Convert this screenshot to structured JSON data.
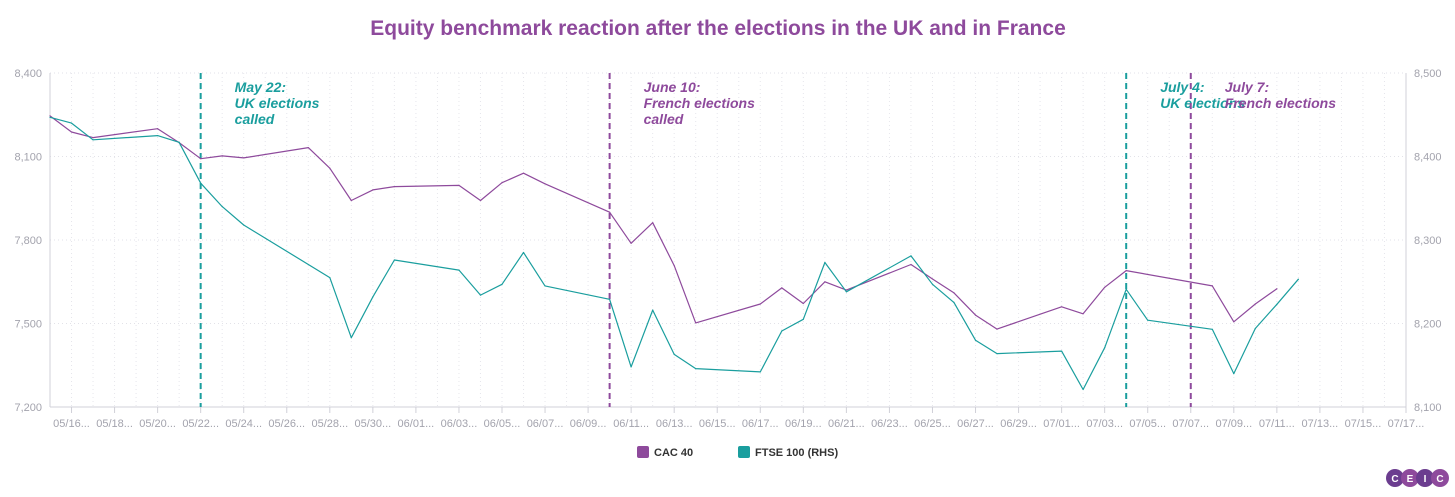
{
  "chart_data": {
    "type": "line",
    "title": "Equity benchmark reaction after the elections in the UK and in France",
    "x_tick_labels": [
      "05/16...",
      "05/18...",
      "05/20...",
      "05/22...",
      "05/24...",
      "05/26...",
      "05/28...",
      "05/30...",
      "06/01...",
      "06/03...",
      "06/05...",
      "06/07...",
      "06/09...",
      "06/11...",
      "06/13...",
      "06/15...",
      "06/17...",
      "06/19...",
      "06/21...",
      "06/23...",
      "06/25...",
      "06/27...",
      "06/29...",
      "07/01...",
      "07/03...",
      "07/05...",
      "07/07...",
      "07/09...",
      "07/11...",
      "07/13...",
      "07/15...",
      "07/17..."
    ],
    "x_range": [
      "2024-05-15",
      "2024-07-17"
    ],
    "y_left": {
      "ticks": [
        "7,200",
        "7,500",
        "7,800",
        "8,100",
        "8,400"
      ],
      "range": [
        7200,
        8400
      ]
    },
    "y_right": {
      "ticks": [
        "8,100",
        "8,200",
        "8,300",
        "8,400",
        "8,500"
      ],
      "range": [
        8100,
        8500
      ]
    },
    "grid": true,
    "legend_position": "bottom-center",
    "series": [
      {
        "name": "CAC 40",
        "axis": "left",
        "color": "#8e4a9c",
        "points": [
          [
            "2024-05-15",
            8246
          ],
          [
            "2024-05-16",
            8188
          ],
          [
            "2024-05-17",
            8168
          ],
          [
            "2024-05-20",
            8200
          ],
          [
            "2024-05-21",
            8150
          ],
          [
            "2024-05-22",
            8092
          ],
          [
            "2024-05-23",
            8102
          ],
          [
            "2024-05-24",
            8095
          ],
          [
            "2024-05-27",
            8132
          ],
          [
            "2024-05-28",
            8058
          ],
          [
            "2024-05-29",
            7942
          ],
          [
            "2024-05-30",
            7980
          ],
          [
            "2024-05-31",
            7992
          ],
          [
            "2024-06-03",
            7996
          ],
          [
            "2024-06-04",
            7942
          ],
          [
            "2024-06-05",
            8006
          ],
          [
            "2024-06-06",
            8040
          ],
          [
            "2024-06-07",
            8002
          ],
          [
            "2024-06-10",
            7900
          ],
          [
            "2024-06-11",
            7788
          ],
          [
            "2024-06-12",
            7862
          ],
          [
            "2024-06-13",
            7708
          ],
          [
            "2024-06-14",
            7502
          ],
          [
            "2024-06-17",
            7570
          ],
          [
            "2024-06-18",
            7628
          ],
          [
            "2024-06-19",
            7572
          ],
          [
            "2024-06-20",
            7650
          ],
          [
            "2024-06-21",
            7620
          ],
          [
            "2024-06-24",
            7712
          ],
          [
            "2024-06-25",
            7660
          ],
          [
            "2024-06-26",
            7610
          ],
          [
            "2024-06-27",
            7530
          ],
          [
            "2024-06-28",
            7480
          ],
          [
            "2024-07-01",
            7560
          ],
          [
            "2024-07-02",
            7535
          ],
          [
            "2024-07-03",
            7630
          ],
          [
            "2024-07-04",
            7690
          ],
          [
            "2024-07-08",
            7635
          ],
          [
            "2024-07-09",
            7506
          ],
          [
            "2024-07-10",
            7570
          ],
          [
            "2024-07-11",
            7625
          ]
        ]
      },
      {
        "name": "FTSE 100 (RHS)",
        "axis": "right",
        "color": "#1a9e9e",
        "points": [
          [
            "2024-05-15",
            8447
          ],
          [
            "2024-05-16",
            8440
          ],
          [
            "2024-05-17",
            8420
          ],
          [
            "2024-05-20",
            8425
          ],
          [
            "2024-05-21",
            8417
          ],
          [
            "2024-05-22",
            8368
          ],
          [
            "2024-05-23",
            8340
          ],
          [
            "2024-05-24",
            8318
          ],
          [
            "2024-05-28",
            8255
          ],
          [
            "2024-05-29",
            8183
          ],
          [
            "2024-05-30",
            8232
          ],
          [
            "2024-05-31",
            8276
          ],
          [
            "2024-06-03",
            8264
          ],
          [
            "2024-06-04",
            8234
          ],
          [
            "2024-06-05",
            8247
          ],
          [
            "2024-06-06",
            8285
          ],
          [
            "2024-06-07",
            8245
          ],
          [
            "2024-06-10",
            8229
          ],
          [
            "2024-06-11",
            8148
          ],
          [
            "2024-06-12",
            8216
          ],
          [
            "2024-06-13",
            8163
          ],
          [
            "2024-06-14",
            8146
          ],
          [
            "2024-06-17",
            8142
          ],
          [
            "2024-06-18",
            8191
          ],
          [
            "2024-06-19",
            8205
          ],
          [
            "2024-06-20",
            8273
          ],
          [
            "2024-06-21",
            8238
          ],
          [
            "2024-06-24",
            8281
          ],
          [
            "2024-06-25",
            8247
          ],
          [
            "2024-06-26",
            8225
          ],
          [
            "2024-06-27",
            8180
          ],
          [
            "2024-06-28",
            8164
          ],
          [
            "2024-07-01",
            8167
          ],
          [
            "2024-07-02",
            8121
          ],
          [
            "2024-07-03",
            8171
          ],
          [
            "2024-07-04",
            8241
          ],
          [
            "2024-07-05",
            8204
          ],
          [
            "2024-07-08",
            8193
          ],
          [
            "2024-07-09",
            8140
          ],
          [
            "2024-07-10",
            8194
          ],
          [
            "2024-07-11",
            8223
          ],
          [
            "2024-07-12",
            8253
          ]
        ]
      }
    ],
    "annotations": [
      {
        "date": "2024-05-22",
        "color": "#1a9e9e",
        "lines": [
          "May 22:",
          "UK elections",
          "called"
        ]
      },
      {
        "date": "2024-06-10",
        "color": "#8e4a9c",
        "lines": [
          "June 10:",
          "French elections",
          "called"
        ]
      },
      {
        "date": "2024-07-04",
        "color": "#1a9e9e",
        "lines": [
          "July 4:",
          "UK elections"
        ]
      },
      {
        "date": "2024-07-07",
        "color": "#8e4a9c",
        "lines": [
          "July 7:",
          "French elections"
        ]
      }
    ]
  },
  "logo": {
    "text": "CEIC",
    "colors": [
      "#6b3d8f",
      "#8e4a9c",
      "#6b3d8f",
      "#8e4a9c"
    ]
  },
  "title_color": "#8e4a9c"
}
